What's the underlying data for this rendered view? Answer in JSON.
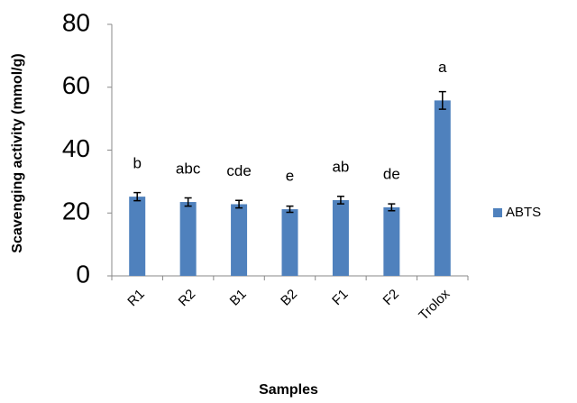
{
  "chart_data": {
    "type": "bar",
    "x_label": "Samples",
    "y_label": "Scavenging activity (mmol/g)",
    "categories": [
      "R1",
      "R2",
      "B1",
      "B2",
      "F1",
      "F2",
      "Trolox"
    ],
    "series": [
      {
        "name": "ABTS",
        "color": "#4f81bd",
        "values": [
          25.2,
          23.5,
          22.8,
          21.2,
          24.1,
          21.8,
          55.8
        ],
        "errors": [
          1.3,
          1.3,
          1.2,
          1.0,
          1.2,
          1.1,
          2.8
        ]
      }
    ],
    "annotations": [
      "b",
      "abc",
      "cde",
      "e",
      "ab",
      "de",
      "a"
    ],
    "ylim": [
      0,
      80
    ],
    "yticks": [
      0,
      20,
      40,
      60,
      80
    ],
    "grid": false,
    "legend": "right"
  }
}
